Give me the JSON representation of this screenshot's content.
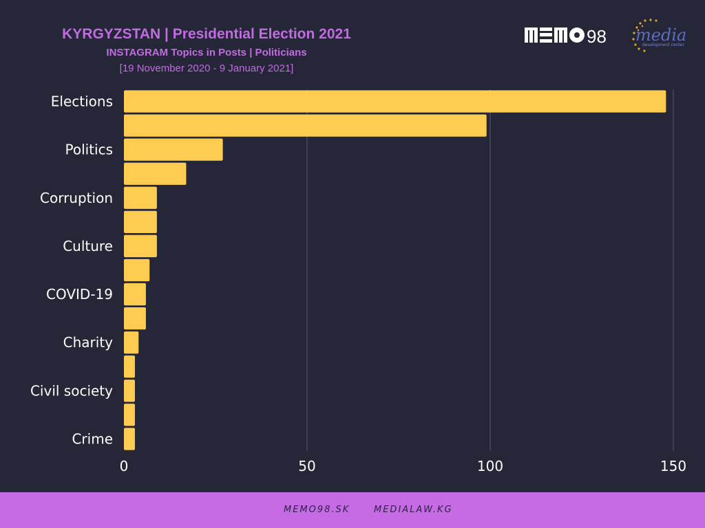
{
  "header": {
    "title": "KYRGYZSTAN | Presidential Election 2021",
    "subtitle": "INSTAGRAM Topics in Posts | Politicians",
    "date_range": "[19 November 2020 - 9 January 2021]"
  },
  "logos": {
    "memo98": "MEMO98",
    "media_center_main": "media",
    "media_center_sub": "development center"
  },
  "footer": {
    "link1": "MEMO98.SK",
    "link2": "MEDIALAW.KG"
  },
  "colors": {
    "background": "#262639",
    "bar": "#ffcc52",
    "accent": "#c16ce0",
    "footer": "#c66ae6"
  },
  "chart_data": {
    "type": "bar",
    "orientation": "horizontal",
    "categories": [
      "Elections",
      "",
      "Politics",
      "",
      "Corruption",
      "",
      "Culture",
      "",
      "COVID-19",
      "",
      "Charity",
      "",
      "Civil society",
      "",
      "Crime"
    ],
    "values": [
      148,
      99,
      27,
      17,
      9,
      9,
      9,
      7,
      6,
      6,
      4,
      3,
      3,
      3,
      3
    ],
    "xlim": [
      0,
      150
    ],
    "xticks": [
      0,
      50,
      100,
      150
    ],
    "xlabel": "",
    "ylabel": "",
    "grid": "vertical"
  }
}
